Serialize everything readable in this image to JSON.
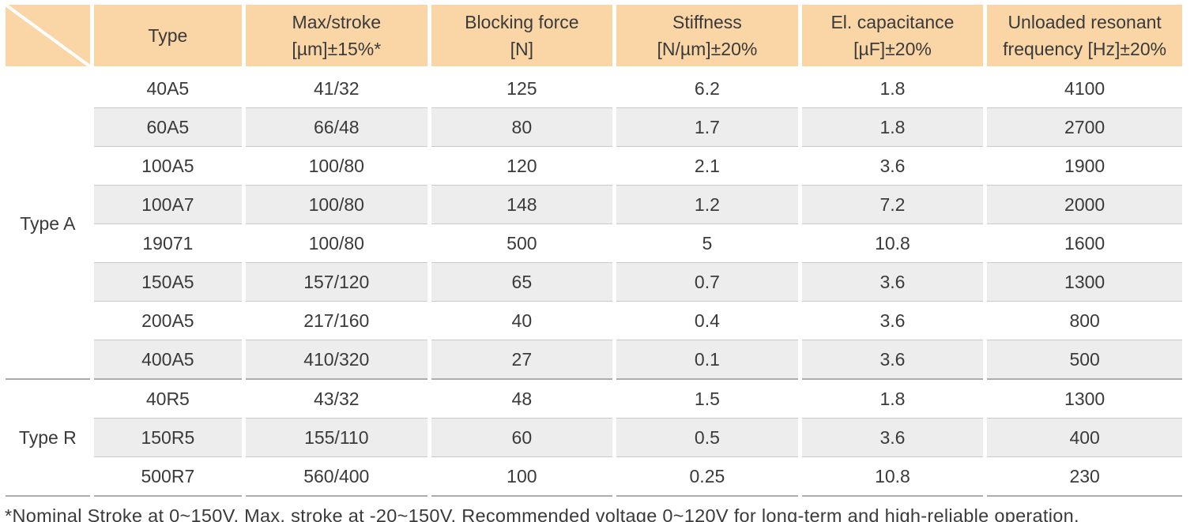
{
  "colors": {
    "header_bg": "#fad6a7",
    "row_alt_bg": "#ededed",
    "row_border": "#c9c9c9",
    "group_separator": "#a9a9a9",
    "text": "#3a3a3a",
    "page_bg": "#ffffff"
  },
  "table": {
    "columns": [
      {
        "label": ""
      },
      {
        "label": "Type"
      },
      {
        "label": "Max/stroke\n[µm]±15%*"
      },
      {
        "label": "Blocking force\n[N]"
      },
      {
        "label": "Stiffness\n[N/µm]±20%"
      },
      {
        "label": "El. capacitance\n[µF]±20%"
      },
      {
        "label": "Unloaded resonant\nfrequency [Hz]±20%"
      }
    ],
    "groups": [
      {
        "label": "Type A",
        "rows": [
          {
            "type": "40A5",
            "values": [
              "41/32",
              "125",
              "6.2",
              "1.8",
              "4100"
            ]
          },
          {
            "type": "60A5",
            "values": [
              "66/48",
              "80",
              "1.7",
              "1.8",
              "2700"
            ]
          },
          {
            "type": "100A5",
            "values": [
              "100/80",
              "120",
              "2.1",
              "3.6",
              "1900"
            ]
          },
          {
            "type": "100A7",
            "values": [
              "100/80",
              "148",
              "1.2",
              "7.2",
              "2000"
            ]
          },
          {
            "type": "19071",
            "values": [
              "100/80",
              "500",
              "5",
              "10.8",
              "1600"
            ]
          },
          {
            "type": "150A5",
            "values": [
              "157/120",
              "65",
              "0.7",
              "3.6",
              "1300"
            ]
          },
          {
            "type": "200A5",
            "values": [
              "217/160",
              "40",
              "0.4",
              "3.6",
              "800"
            ]
          },
          {
            "type": "400A5",
            "values": [
              "410/320",
              "27",
              "0.1",
              "3.6",
              "500"
            ]
          }
        ]
      },
      {
        "label": "Type R",
        "rows": [
          {
            "type": "40R5",
            "values": [
              "43/32",
              "48",
              "1.5",
              "1.8",
              "1300"
            ]
          },
          {
            "type": "150R5",
            "values": [
              "155/110",
              "60",
              "0.5",
              "3.6",
              "400"
            ]
          },
          {
            "type": "500R7",
            "values": [
              "560/400",
              "100",
              "0.25",
              "10.8",
              "230"
            ]
          }
        ]
      }
    ]
  },
  "footnote": "*Nominal Stroke at 0~150V, Max. stroke at -20~150V. Recommended voltage 0~120V for long-term and high-reliable operation."
}
